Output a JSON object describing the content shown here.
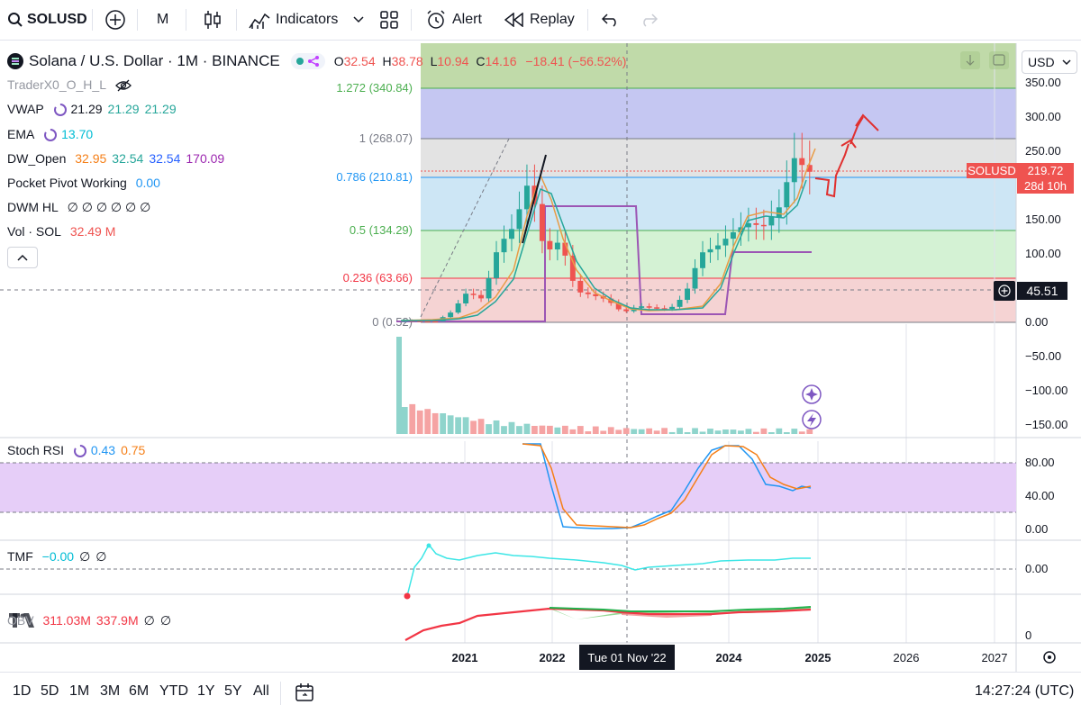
{
  "toolbar": {
    "symbol": "SOLUSD",
    "interval": "M",
    "indicators_label": "Indicators",
    "alert_label": "Alert",
    "replay_label": "Replay"
  },
  "header": {
    "title": "Solana / U.S. Dollar · 1M · BINANCE",
    "ohlc": {
      "o_label": "O",
      "o": "32.54",
      "h_label": "H",
      "h": "38.78",
      "l_label": "L",
      "l": "10.94",
      "c_label": "C",
      "c": "14.16",
      "change": "−18.41 (−56.52%)"
    }
  },
  "legends": {
    "tradero": "TraderX0_O_H_L",
    "vwap_name": "VWAP",
    "vwap_vals": [
      "21.29",
      "21.29",
      "21.29"
    ],
    "ema_name": "EMA",
    "ema_val": "13.70",
    "dw_name": "DW_Open",
    "dw_vals": [
      "32.95",
      "32.54",
      "32.54",
      "170.09"
    ],
    "pocket_name": "Pocket Pivot Working",
    "pocket_val": "0.00",
    "dwm_name": "DWM HL",
    "dwm_vals": "∅ ∅ ∅ ∅ ∅ ∅",
    "vol_name": "Vol · SOL",
    "vol_val": "32.49 M",
    "stoch_name": "Stoch RSI",
    "stoch_vals": [
      "0.43",
      "0.75"
    ],
    "tmf_name": "TMF",
    "tmf_vals": [
      "−0.00",
      "∅",
      "∅"
    ],
    "obv_name": "OBV",
    "obv_vals": [
      "311.03M",
      "337.9M",
      "∅",
      "∅"
    ]
  },
  "fib_levels": [
    {
      "label": "1.272 (340.84)",
      "color": "#4caf50"
    },
    {
      "label": "1 (268.07)",
      "color": "#787b86"
    },
    {
      "label": "0.786 (210.81)",
      "color": "#2196f3"
    },
    {
      "label": "0.5 (134.29)",
      "color": "#4caf50"
    },
    {
      "label": "0.236 (63.66)",
      "color": "#f23645"
    },
    {
      "label": "0 (0.52)",
      "color": "#787b86"
    }
  ],
  "price_axis": {
    "currency": "USD",
    "ticks": [
      "350.00",
      "300.00",
      "250.00",
      "200.00",
      "150.00",
      "100.00",
      "50.00",
      "0.00",
      "−50.00",
      "−100.00",
      "−150.00"
    ],
    "last_symbol": "SOLUSD",
    "last_price": "219.72",
    "countdown": "28d 10h",
    "crosshair_price": "45.51"
  },
  "stoch_axis": [
    "80.00",
    "40.00",
    "0.00"
  ],
  "tmf_axis": [
    "0.00"
  ],
  "obv_axis": [
    "0"
  ],
  "time_axis": {
    "labels": [
      "2021",
      "2022",
      "2024",
      "2025",
      "2026",
      "2027"
    ],
    "crosshair_date": "Tue 01 Nov '22"
  },
  "bottom": {
    "ranges": [
      "1D",
      "5D",
      "1M",
      "3M",
      "6M",
      "YTD",
      "1Y",
      "5Y",
      "All"
    ],
    "clock": "14:27:24 (UTC)"
  },
  "colors": {
    "up": "#26a69a",
    "down": "#ef5350",
    "accent": "#2962ff"
  },
  "chart_data": {
    "type": "candlestick",
    "note_series": "Solana / U.S. Dollar monthly",
    "months": [
      "2020-08",
      "2020-10",
      "2020-12",
      "2021-02",
      "2021-04",
      "2021-06",
      "2021-08",
      "2021-09",
      "2021-11",
      "2022-01",
      "2022-03",
      "2022-05",
      "2022-07",
      "2022-09",
      "2022-11",
      "2023-01",
      "2023-04",
      "2023-07",
      "2023-10",
      "2023-12",
      "2024-02",
      "2024-04",
      "2024-06",
      "2024-08",
      "2024-10",
      "2024-11",
      "2024-12"
    ],
    "close": [
      2.9,
      1.8,
      1.5,
      15.0,
      44.0,
      34.0,
      111.0,
      140.0,
      210.0,
      100.0,
      120.0,
      45.0,
      40.0,
      33.0,
      14.0,
      24.0,
      21.0,
      19.0,
      40.0,
      101.0,
      110.0,
      130.0,
      145.0,
      140.0,
      165.0,
      240.0,
      219.72
    ],
    "ylim": [
      0,
      360
    ],
    "stoch_rsi": {
      "k": 0.43,
      "d": 0.75
    }
  }
}
